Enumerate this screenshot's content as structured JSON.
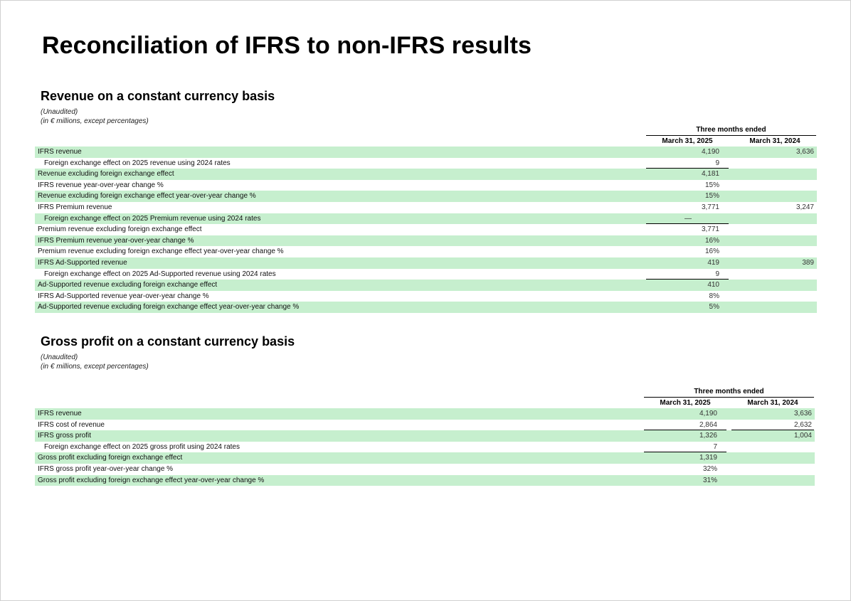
{
  "page": {
    "title": "Reconciliation of IFRS to non-IFRS results"
  },
  "revenue": {
    "heading": "Revenue on a constant currency basis",
    "note1": "(Unaudited)",
    "note2": "(in € millions, except percentages)",
    "group_header": "Three months ended",
    "col1": "March 31, 2025",
    "col2": "March 31, 2024",
    "rows": [
      {
        "label": "IFRS revenue",
        "v1": "4,190",
        "v2": "3,636",
        "indent": false,
        "shaded": true
      },
      {
        "label": "Foreign exchange effect on 2025 revenue using 2024 rates",
        "v1": "9",
        "v2": "",
        "indent": true,
        "shaded": false
      },
      {
        "label": "Revenue excluding foreign exchange effect",
        "v1": "4,181",
        "v2": "",
        "indent": false,
        "shaded": true
      },
      {
        "label": "IFRS revenue year-over-year change %",
        "v1": "15%",
        "v2": "",
        "indent": false,
        "shaded": false
      },
      {
        "label": "Revenue excluding foreign exchange effect year-over-year change %",
        "v1": "15%",
        "v2": "",
        "indent": false,
        "shaded": true
      },
      {
        "label": "IFRS Premium revenue",
        "v1": "3,771",
        "v2": "3,247",
        "indent": false,
        "shaded": false
      },
      {
        "label": "Foreign exchange effect on 2025 Premium revenue using 2024 rates",
        "v1": "—",
        "v2": "",
        "indent": true,
        "shaded": true
      },
      {
        "label": "Premium revenue excluding foreign exchange effect",
        "v1": "3,771",
        "v2": "",
        "indent": false,
        "shaded": false
      },
      {
        "label": "IFRS Premium revenue year-over-year change %",
        "v1": "16%",
        "v2": "",
        "indent": false,
        "shaded": true
      },
      {
        "label": "Premium revenue excluding foreign exchange effect year-over-year change %",
        "v1": "16%",
        "v2": "",
        "indent": false,
        "shaded": false
      },
      {
        "label": "IFRS Ad-Supported revenue",
        "v1": "419",
        "v2": "389",
        "indent": false,
        "shaded": true
      },
      {
        "label": "Foreign exchange effect on 2025 Ad-Supported revenue using 2024 rates",
        "v1": "9",
        "v2": "",
        "indent": true,
        "shaded": false
      },
      {
        "label": "Ad-Supported revenue excluding foreign exchange effect",
        "v1": "410",
        "v2": "",
        "indent": false,
        "shaded": true
      },
      {
        "label": "IFRS Ad-Supported revenue year-over-year change %",
        "v1": "8%",
        "v2": "",
        "indent": false,
        "shaded": false
      },
      {
        "label": "Ad-Supported revenue excluding foreign exchange effect year-over-year change %",
        "v1": "5%",
        "v2": "",
        "indent": false,
        "shaded": true
      }
    ]
  },
  "gross": {
    "heading": "Gross profit on a constant currency basis",
    "note1": "(Unaudited)",
    "note2": "(in € millions, except percentages)",
    "group_header": "Three months ended",
    "col1": "March 31, 2025",
    "col2": "March 31, 2024",
    "rows": [
      {
        "label": "IFRS revenue",
        "v1": "4,190",
        "v2": "3,636",
        "indent": false,
        "shaded": true
      },
      {
        "label": "IFRS cost of revenue",
        "v1": "2,864",
        "v2": "2,632",
        "indent": false,
        "shaded": false
      },
      {
        "label": "IFRS gross profit",
        "v1": "1,326",
        "v2": "1,004",
        "indent": false,
        "shaded": true
      },
      {
        "label": "Foreign exchange effect on 2025 gross profit using 2024 rates",
        "v1": "7",
        "v2": "",
        "indent": true,
        "shaded": false
      },
      {
        "label": "Gross profit excluding foreign exchange effect",
        "v1": "1,319",
        "v2": "",
        "indent": false,
        "shaded": true
      },
      {
        "label": "IFRS gross profit year-over-year change %",
        "v1": "32%",
        "v2": "",
        "indent": false,
        "shaded": false
      },
      {
        "label": "Gross profit excluding foreign exchange effect year-over-year change %",
        "v1": "31%",
        "v2": "",
        "indent": false,
        "shaded": true
      }
    ]
  }
}
